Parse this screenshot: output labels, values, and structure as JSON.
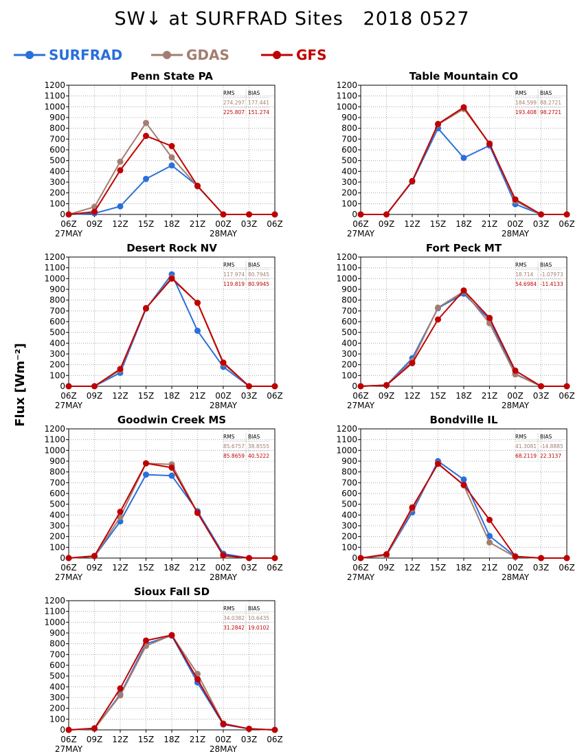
{
  "title": "SW↓ at SURFRAD Sites   2018 0527",
  "ylabel": "Flux [Wm⁻²]",
  "legend": [
    {
      "name": "SURFRAD",
      "color": "#2a6fdb"
    },
    {
      "name": "GDAS",
      "color": "#a27e71"
    },
    {
      "name": "GFS",
      "color": "#c00000"
    }
  ],
  "chart_data": [
    {
      "type": "line",
      "title": "Penn State PA",
      "categories": [
        "06Z",
        "09Z",
        "12Z",
        "15Z",
        "18Z",
        "21Z",
        "00Z",
        "03Z",
        "06Z"
      ],
      "date_labels": [
        "27MAY",
        "",
        "",
        "",
        "",
        "",
        "28MAY",
        "",
        ""
      ],
      "ylim": [
        0,
        1200
      ],
      "yticks": [
        0,
        100,
        200,
        300,
        400,
        500,
        600,
        700,
        800,
        900,
        1000,
        1100,
        1200
      ],
      "stats_header": [
        "RMS",
        "BIAS"
      ],
      "stats": {
        "GDAS": [
          "274.297",
          "177.441"
        ],
        "GFS": [
          "225.807",
          "151.274"
        ]
      },
      "series": [
        {
          "name": "SURFRAD",
          "color": "#2a6fdb",
          "values": [
            0,
            10,
            75,
            330,
            455,
            265,
            0,
            0,
            0
          ]
        },
        {
          "name": "GDAS",
          "color": "#a27e71",
          "values": [
            0,
            70,
            490,
            850,
            530,
            260,
            0,
            0,
            0
          ]
        },
        {
          "name": "GFS",
          "color": "#c00000",
          "values": [
            0,
            25,
            410,
            730,
            635,
            265,
            0,
            0,
            0
          ]
        }
      ]
    },
    {
      "type": "line",
      "title": "Table Mountain CO",
      "categories": [
        "06Z",
        "09Z",
        "12Z",
        "15Z",
        "18Z",
        "21Z",
        "00Z",
        "03Z",
        "06Z"
      ],
      "date_labels": [
        "27MAY",
        "",
        "",
        "",
        "",
        "",
        "28MAY",
        "",
        ""
      ],
      "ylim": [
        0,
        1200
      ],
      "yticks": [
        0,
        100,
        200,
        300,
        400,
        500,
        600,
        700,
        800,
        900,
        1000,
        1100,
        1200
      ],
      "stats_header": [
        "RMS",
        "BIAS"
      ],
      "stats": {
        "GDAS": [
          "184.599",
          "88.2721"
        ],
        "GFS": [
          "193.408",
          "98.2721"
        ]
      },
      "series": [
        {
          "name": "SURFRAD",
          "color": "#2a6fdb",
          "values": [
            0,
            0,
            305,
            800,
            525,
            640,
            95,
            0,
            0
          ]
        },
        {
          "name": "GDAS",
          "color": "#a27e71",
          "values": [
            0,
            0,
            310,
            835,
            980,
            660,
            125,
            0,
            0
          ]
        },
        {
          "name": "GFS",
          "color": "#c00000",
          "values": [
            0,
            0,
            310,
            840,
            995,
            655,
            140,
            0,
            0
          ]
        }
      ]
    },
    {
      "type": "line",
      "title": "Desert Rock NV",
      "categories": [
        "06Z",
        "09Z",
        "12Z",
        "15Z",
        "18Z",
        "21Z",
        "00Z",
        "03Z",
        "06Z"
      ],
      "date_labels": [
        "27MAY",
        "",
        "",
        "",
        "",
        "",
        "28MAY",
        "",
        ""
      ],
      "ylim": [
        0,
        1200
      ],
      "yticks": [
        0,
        100,
        200,
        300,
        400,
        500,
        600,
        700,
        800,
        900,
        1000,
        1100,
        1200
      ],
      "stats_header": [
        "RMS",
        "BIAS"
      ],
      "stats": {
        "GDAS": [
          "117.974",
          "80.7945"
        ],
        "GFS": [
          "119.819",
          "80.9945"
        ]
      },
      "series": [
        {
          "name": "SURFRAD",
          "color": "#2a6fdb",
          "values": [
            0,
            0,
            125,
            720,
            1040,
            515,
            180,
            0,
            0
          ]
        },
        {
          "name": "GDAS",
          "color": "#a27e71",
          "values": [
            0,
            0,
            150,
            725,
            1010,
            775,
            210,
            0,
            0
          ]
        },
        {
          "name": "GFS",
          "color": "#c00000",
          "values": [
            0,
            0,
            160,
            725,
            1000,
            775,
            220,
            0,
            0
          ]
        }
      ]
    },
    {
      "type": "line",
      "title": "Fort Peck MT",
      "categories": [
        "06Z",
        "09Z",
        "12Z",
        "15Z",
        "18Z",
        "21Z",
        "00Z",
        "03Z",
        "06Z"
      ],
      "date_labels": [
        "27MAY",
        "",
        "",
        "",
        "",
        "",
        "28MAY",
        "",
        ""
      ],
      "ylim": [
        0,
        1200
      ],
      "yticks": [
        0,
        100,
        200,
        300,
        400,
        500,
        600,
        700,
        800,
        900,
        1000,
        1100,
        1200
      ],
      "stats_header": [
        "RMS",
        "BIAS"
      ],
      "stats": {
        "GDAS": [
          "18.714",
          "-1.07973"
        ],
        "GFS": [
          "54.6984",
          "-11.4133"
        ]
      },
      "series": [
        {
          "name": "SURFRAD",
          "color": "#2a6fdb",
          "values": [
            0,
            10,
            260,
            725,
            860,
            620,
            115,
            0,
            0
          ]
        },
        {
          "name": "GDAS",
          "color": "#a27e71",
          "values": [
            0,
            10,
            235,
            730,
            880,
            585,
            110,
            0,
            0
          ]
        },
        {
          "name": "GFS",
          "color": "#c00000",
          "values": [
            0,
            10,
            215,
            620,
            890,
            635,
            145,
            0,
            0
          ]
        }
      ]
    },
    {
      "type": "line",
      "title": "Goodwin Creek MS",
      "categories": [
        "06Z",
        "09Z",
        "12Z",
        "15Z",
        "18Z",
        "21Z",
        "00Z",
        "03Z",
        "06Z"
      ],
      "date_labels": [
        "27MAY",
        "",
        "",
        "",
        "",
        "",
        "28MAY",
        "",
        ""
      ],
      "ylim": [
        0,
        1200
      ],
      "yticks": [
        0,
        100,
        200,
        300,
        400,
        500,
        600,
        700,
        800,
        900,
        1000,
        1100,
        1200
      ],
      "stats_header": [
        "RMS",
        "BIAS"
      ],
      "stats": {
        "GDAS": [
          "85.6757",
          "38.8555"
        ],
        "GFS": [
          "85.8659",
          "40.5222"
        ]
      },
      "series": [
        {
          "name": "SURFRAD",
          "color": "#2a6fdb",
          "values": [
            0,
            15,
            340,
            775,
            765,
            435,
            40,
            0,
            0
          ]
        },
        {
          "name": "GDAS",
          "color": "#a27e71",
          "values": [
            0,
            15,
            380,
            880,
            870,
            420,
            20,
            0,
            0
          ]
        },
        {
          "name": "GFS",
          "color": "#c00000",
          "values": [
            0,
            20,
            430,
            880,
            840,
            420,
            25,
            0,
            0
          ]
        }
      ]
    },
    {
      "type": "line",
      "title": "Bondville IL",
      "categories": [
        "06Z",
        "09Z",
        "12Z",
        "15Z",
        "18Z",
        "21Z",
        "00Z",
        "03Z",
        "06Z"
      ],
      "date_labels": [
        "27MAY",
        "",
        "",
        "",
        "",
        "",
        "28MAY",
        "",
        ""
      ],
      "ylim": [
        0,
        1200
      ],
      "yticks": [
        0,
        100,
        200,
        300,
        400,
        500,
        600,
        700,
        800,
        900,
        1000,
        1100,
        1200
      ],
      "stats_header": [
        "RMS",
        "BIAS"
      ],
      "stats": {
        "GDAS": [
          "41.3081",
          "-14.8885"
        ],
        "GFS": [
          "68.2119",
          "22.3137"
        ]
      },
      "series": [
        {
          "name": "SURFRAD",
          "color": "#2a6fdb",
          "values": [
            0,
            25,
            425,
            900,
            730,
            205,
            15,
            0,
            0
          ]
        },
        {
          "name": "GDAS",
          "color": "#a27e71",
          "values": [
            0,
            25,
            455,
            880,
            675,
            145,
            10,
            0,
            0
          ]
        },
        {
          "name": "GFS",
          "color": "#c00000",
          "values": [
            0,
            35,
            470,
            875,
            680,
            355,
            15,
            0,
            0
          ]
        }
      ]
    },
    {
      "type": "line",
      "title": "Sioux Fall SD",
      "categories": [
        "06Z",
        "09Z",
        "12Z",
        "15Z",
        "18Z",
        "21Z",
        "00Z",
        "03Z",
        "06Z"
      ],
      "date_labels": [
        "27MAY",
        "",
        "",
        "",
        "",
        "",
        "28MAY",
        "",
        ""
      ],
      "ylim": [
        0,
        1200
      ],
      "yticks": [
        0,
        100,
        200,
        300,
        400,
        500,
        600,
        700,
        800,
        900,
        1000,
        1100,
        1200
      ],
      "stats_header": [
        "RMS",
        "BIAS"
      ],
      "stats": {
        "GDAS": [
          "34.0382",
          "10.6435"
        ],
        "GFS": [
          "31.2842",
          "19.0102"
        ]
      },
      "series": [
        {
          "name": "SURFRAD",
          "color": "#2a6fdb",
          "values": [
            0,
            10,
            330,
            800,
            875,
            440,
            50,
            10,
            0
          ]
        },
        {
          "name": "GDAS",
          "color": "#a27e71",
          "values": [
            0,
            10,
            320,
            780,
            880,
            520,
            60,
            10,
            0
          ]
        },
        {
          "name": "GFS",
          "color": "#c00000",
          "values": [
            0,
            15,
            385,
            830,
            880,
            470,
            55,
            10,
            0
          ]
        }
      ]
    }
  ]
}
